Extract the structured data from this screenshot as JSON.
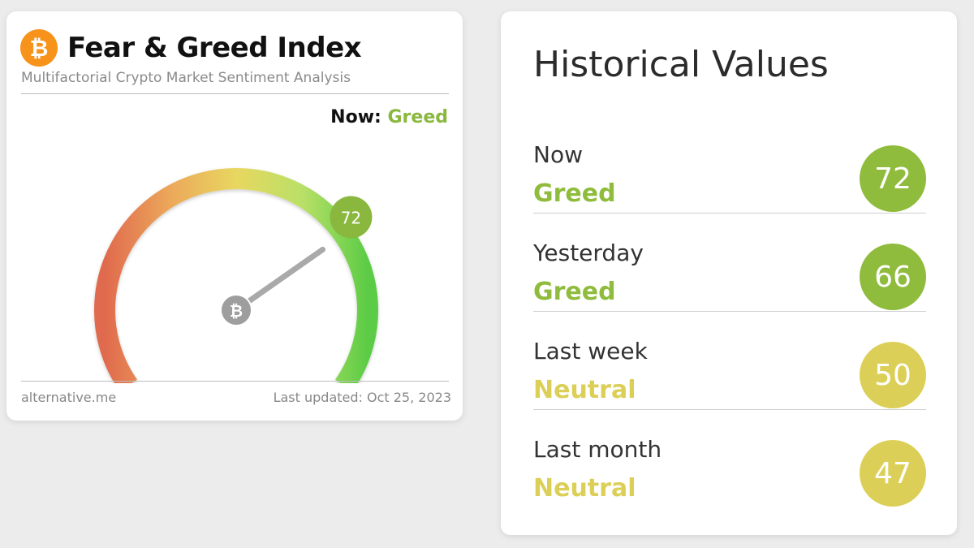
{
  "fear_greed": {
    "logo_glyph": "₿",
    "title": "Fear & Greed Index",
    "subtitle": "Multifactorial Crypto Market Sentiment Analysis",
    "now_label": "Now:",
    "now_value": "Greed",
    "gauge_value": 72,
    "gauge_value_label": "72",
    "gauge_center_glyph": "₿",
    "source": "alternative.me",
    "last_updated": "Last updated: Oct 25, 2023",
    "colors": {
      "greed": "#8ab83e",
      "neutral": "#dccf57",
      "bitcoin": "#f7931a"
    }
  },
  "historical": {
    "title": "Historical Values",
    "rows": [
      {
        "period": "Now",
        "classification": "Greed",
        "value": "72",
        "color": "#8fbc3c"
      },
      {
        "period": "Yesterday",
        "classification": "Greed",
        "value": "66",
        "color": "#8fbc3c"
      },
      {
        "period": "Last week",
        "classification": "Neutral",
        "value": "50",
        "color": "#dccf57"
      },
      {
        "period": "Last month",
        "classification": "Neutral",
        "value": "47",
        "color": "#dccf57"
      }
    ]
  }
}
